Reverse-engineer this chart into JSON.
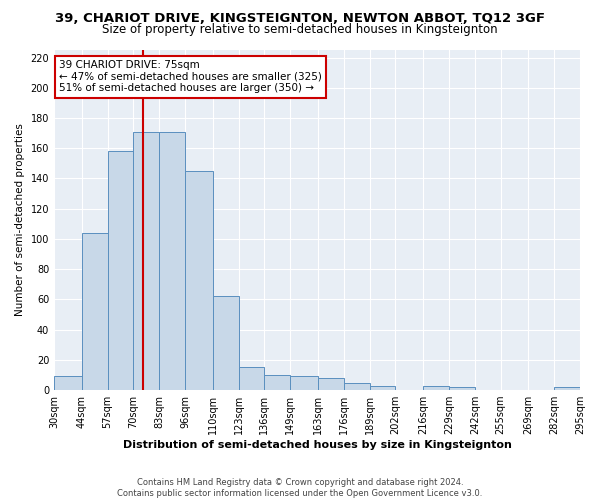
{
  "title": "39, CHARIOT DRIVE, KINGSTEIGNTON, NEWTON ABBOT, TQ12 3GF",
  "subtitle": "Size of property relative to semi-detached houses in Kingsteignton",
  "xlabel": "Distribution of semi-detached houses by size in Kingsteignton",
  "ylabel": "Number of semi-detached properties",
  "footnote1": "Contains HM Land Registry data © Crown copyright and database right 2024.",
  "footnote2": "Contains public sector information licensed under the Open Government Licence v3.0.",
  "annotation_title": "39 CHARIOT DRIVE: 75sqm",
  "annotation_line1": "← 47% of semi-detached houses are smaller (325)",
  "annotation_line2": "51% of semi-detached houses are larger (350) →",
  "property_size": 75,
  "bin_edges": [
    30,
    44,
    57,
    70,
    83,
    96,
    110,
    123,
    136,
    149,
    163,
    176,
    189,
    202,
    216,
    229,
    242,
    255,
    269,
    282,
    295
  ],
  "bar_heights": [
    9,
    104,
    158,
    171,
    171,
    145,
    62,
    15,
    10,
    9,
    8,
    5,
    3,
    0,
    3,
    2,
    0,
    0,
    0,
    2
  ],
  "bar_color": "#c8d8e8",
  "bar_edge_color": "#5a8fbf",
  "vline_color": "#cc0000",
  "ylim": [
    0,
    225
  ],
  "yticks": [
    0,
    20,
    40,
    60,
    80,
    100,
    120,
    140,
    160,
    180,
    200,
    220
  ],
  "bg_color": "#e8eef5",
  "annotation_box_color": "#ffffff",
  "annotation_box_edge": "#cc0000",
  "title_fontsize": 9.5,
  "subtitle_fontsize": 8.5,
  "tick_label_fontsize": 7,
  "ylabel_fontsize": 7.5,
  "xlabel_fontsize": 8,
  "size_labels": [
    "30sqm",
    "44sqm",
    "57sqm",
    "70sqm",
    "83sqm",
    "96sqm",
    "110sqm",
    "123sqm",
    "136sqm",
    "149sqm",
    "163sqm",
    "176sqm",
    "189sqm",
    "202sqm",
    "216sqm",
    "229sqm",
    "242sqm",
    "255sqm",
    "269sqm",
    "282sqm",
    "295sqm"
  ]
}
